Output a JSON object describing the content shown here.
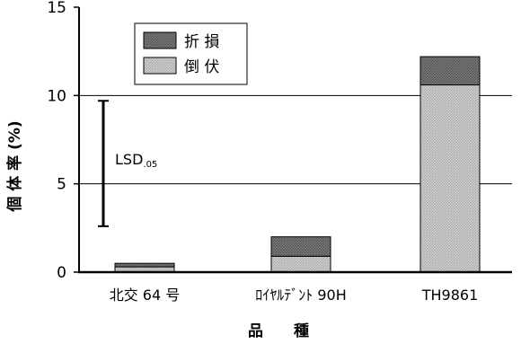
{
  "chart_data": {
    "type": "bar",
    "stacked": true,
    "categories": [
      "北交 64 号",
      "ﾛｲﾔﾙﾃﾞﾝﾄ 90H",
      "TH9861"
    ],
    "series": [
      {
        "name": "倒 伏",
        "values": [
          0.3,
          0.9,
          10.6
        ],
        "color": "#c8c8c8"
      },
      {
        "name": "折 損",
        "values": [
          0.2,
          1.1,
          1.6
        ],
        "color": "#6e6e6e"
      }
    ],
    "ylim": [
      0,
      15
    ],
    "yticks": [
      0,
      5,
      10,
      15
    ],
    "ytick_labels": [
      "0",
      "5",
      "10",
      "15"
    ],
    "gridlines_y": [
      5,
      10
    ],
    "ylabel": "個 体 率  (%)",
    "xlabel": "品　　種",
    "legend_position": "top-left",
    "lsd": {
      "label_main": "LSD",
      "label_sub": ".05",
      "low": 2.6,
      "high": 9.7
    }
  }
}
